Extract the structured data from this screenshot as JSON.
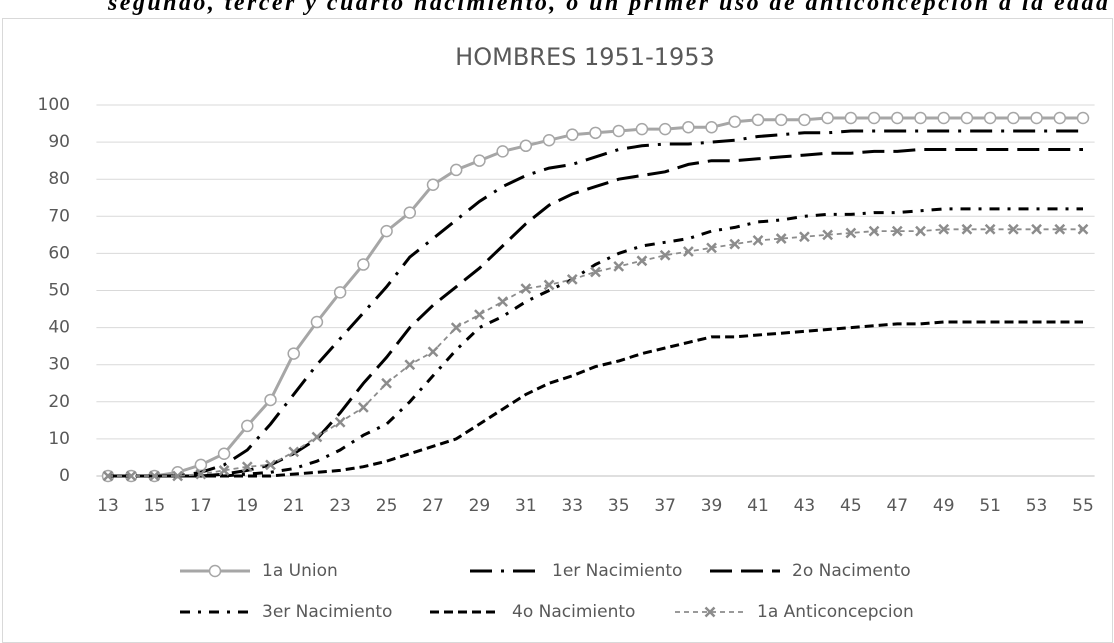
{
  "caption": "segundo, tercer y cuarto nacimiento, o un primer uso de anticoncepcion a la edad",
  "chart_data": {
    "type": "line",
    "title": "HOMBRES 1951-1953",
    "categories": [
      "13",
      null,
      "15",
      null,
      "17",
      null,
      "19",
      null,
      "21",
      null,
      "23",
      null,
      "25",
      null,
      "27",
      null,
      "29",
      null,
      "31",
      null,
      "33",
      null,
      "35",
      null,
      "37",
      null,
      "39",
      null,
      "41",
      null,
      "43",
      null,
      "45",
      null,
      "47",
      null,
      "49",
      null,
      "51",
      null,
      "53",
      null,
      "55"
    ],
    "ylim": [
      0,
      100
    ],
    "yticks": [
      0,
      10,
      20,
      30,
      40,
      50,
      60,
      70,
      80,
      90,
      100
    ],
    "grid": true,
    "series": [
      {
        "name": "1a Union",
        "color": "#a6a6a6",
        "line_style": "solid",
        "marker": "circle",
        "values": [
          0,
          0,
          0,
          1,
          3,
          6,
          13.5,
          20.5,
          33,
          41.5,
          49.5,
          57,
          66,
          71,
          78.5,
          82.5,
          85,
          87.5,
          89,
          90.5,
          92,
          92.5,
          93,
          93.5,
          93.5,
          94,
          94,
          95.5,
          96,
          96,
          96,
          96.5,
          96.5,
          96.5,
          96.5,
          96.5,
          96.5,
          96.5,
          96.5,
          96.5,
          96.5,
          96.5,
          96.5
        ]
      },
      {
        "name": "1er Nacimiento",
        "color": "#000000",
        "line_style": "long-dash-dot",
        "marker": "none",
        "values": [
          0,
          0,
          0,
          0,
          1,
          3,
          7,
          14,
          22,
          30,
          37,
          44,
          51,
          59,
          64,
          69,
          74,
          78,
          81,
          83,
          84,
          86,
          88,
          89,
          89.5,
          89.5,
          90,
          90.5,
          91.5,
          92,
          92.5,
          92.5,
          93,
          93,
          93,
          93,
          93,
          93,
          93,
          93,
          93,
          93,
          93
        ]
      },
      {
        "name": "2o Nacimento",
        "color": "#000000",
        "line_style": "long-dash",
        "marker": "none",
        "values": [
          0,
          0,
          0,
          0,
          0,
          0.5,
          1.5,
          3,
          6,
          10,
          17,
          25,
          32,
          40,
          46,
          51,
          56,
          62,
          68,
          73,
          76,
          78,
          80,
          81,
          82,
          84,
          85,
          85,
          85.5,
          86,
          86.5,
          87,
          87,
          87.5,
          87.5,
          88,
          88,
          88,
          88,
          88,
          88,
          88,
          88
        ]
      },
      {
        "name": "3er Nacimiento",
        "color": "#000000",
        "line_style": "dash-dot",
        "marker": "none",
        "values": [
          0,
          0,
          0,
          0,
          0,
          0,
          0.5,
          1,
          2,
          4,
          7,
          11,
          14,
          20,
          27,
          34,
          40,
          43,
          47,
          50,
          53,
          57,
          60,
          62,
          63,
          64,
          66,
          67,
          68.5,
          69,
          70,
          70.5,
          70.5,
          71,
          71,
          71.5,
          72,
          72,
          72,
          72,
          72,
          72,
          72
        ]
      },
      {
        "name": "4o Nacimiento",
        "color": "#000000",
        "line_style": "dash",
        "marker": "none",
        "values": [
          0,
          0,
          0,
          0,
          0,
          0,
          0,
          0,
          0.5,
          1,
          1.5,
          2.5,
          4,
          6,
          8,
          10,
          14,
          18,
          22,
          25,
          27,
          29.5,
          31,
          33,
          34.5,
          36,
          37.5,
          37.5,
          38,
          38.5,
          39,
          39.5,
          40,
          40.5,
          41,
          41,
          41.5,
          41.5,
          41.5,
          41.5,
          41.5,
          41.5,
          41.5
        ]
      },
      {
        "name": "1a Anticoncepcion",
        "color": "#8c8c8c",
        "line_style": "short-dash",
        "marker": "x",
        "values": [
          0,
          0,
          0,
          0,
          0.5,
          1.5,
          2.5,
          3,
          6.5,
          10.5,
          14.5,
          18.5,
          25,
          30,
          33.5,
          40,
          43.5,
          47,
          50.5,
          51.5,
          53,
          55,
          56.5,
          58,
          59.5,
          60.5,
          61.5,
          62.5,
          63.5,
          64,
          64.5,
          65,
          65.5,
          66,
          66,
          66,
          66.5,
          66.5,
          66.5,
          66.5,
          66.5,
          66.5,
          66.5
        ]
      }
    ]
  }
}
